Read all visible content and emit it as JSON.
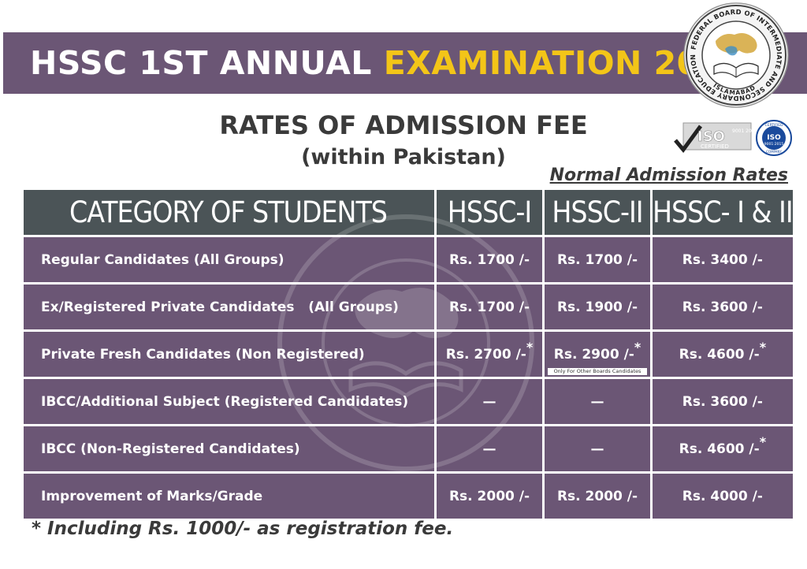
{
  "banner": {
    "title_white": "HSSC 1ST ANNUAL",
    "title_yellow": "EXAMINATION 2022",
    "colors": {
      "banner_bg": "#6b5675",
      "highlight": "#f3c518"
    }
  },
  "seal": {
    "ring_text": "FEDERAL BOARD OF INTERMEDIATE AND SECONDARY EDUCATION",
    "city": "ISLAMABAD",
    "icon": "fbise-seal-icon"
  },
  "heading": {
    "title": "RATES OF ADMISSION FEE",
    "subtitle": "(within Pakistan)"
  },
  "iso_badges": {
    "badge1_main": "ISO",
    "badge1_codes": "9001 2015",
    "badge1_sub": "CERTIFIED",
    "badge2_top": "CERTIFIED",
    "badge2_main": "ISO",
    "badge2_code": "9001:2015",
    "badge2_bottom": "COMPANY"
  },
  "table_caption": "Normal Admission Rates",
  "table": {
    "headers": [
      "CATEGORY OF STUDENTS",
      "HSSC-I",
      "HSSC-II",
      "HSSC- I & II"
    ],
    "rows": [
      {
        "category": "Regular Candidates (All Groups)",
        "hssc1": "Rs. 1700 /-",
        "hssc2": "Rs. 1700 /-",
        "both": "Rs. 3400 /-"
      },
      {
        "category": "Ex/Registered Private Candidates   (All Groups)",
        "hssc1": "Rs. 1700 /-",
        "hssc2": "Rs. 1900 /-",
        "both": "Rs. 3600 /-"
      },
      {
        "category": "Private Fresh Candidates (Non Registered)",
        "hssc1": "Rs. 2700 /-",
        "hssc2": "Rs. 2900 /-",
        "both": "Rs. 4600 /-",
        "hssc2_note": "Only For Other Boards Candidates"
      },
      {
        "category": "IBCC/Additional Subject (Registered Candidates)",
        "hssc1": "—",
        "hssc2": "—",
        "both": "Rs. 3600 /-"
      },
      {
        "category": "IBCC (Non-Registered Candidates)",
        "hssc1": "—",
        "hssc2": "—",
        "both": "Rs. 4600 /-"
      },
      {
        "category": "Improvement of Marks/Grade",
        "hssc1": "Rs. 2000 /-",
        "hssc2": "Rs. 2000 /-",
        "both": "Rs. 4000 /-"
      }
    ],
    "asterisk": "*",
    "colors": {
      "header_bg": "#4b5457",
      "row_bg": "#6b5675"
    }
  },
  "footnote": "* Including Rs. 1000/- as registration fee."
}
